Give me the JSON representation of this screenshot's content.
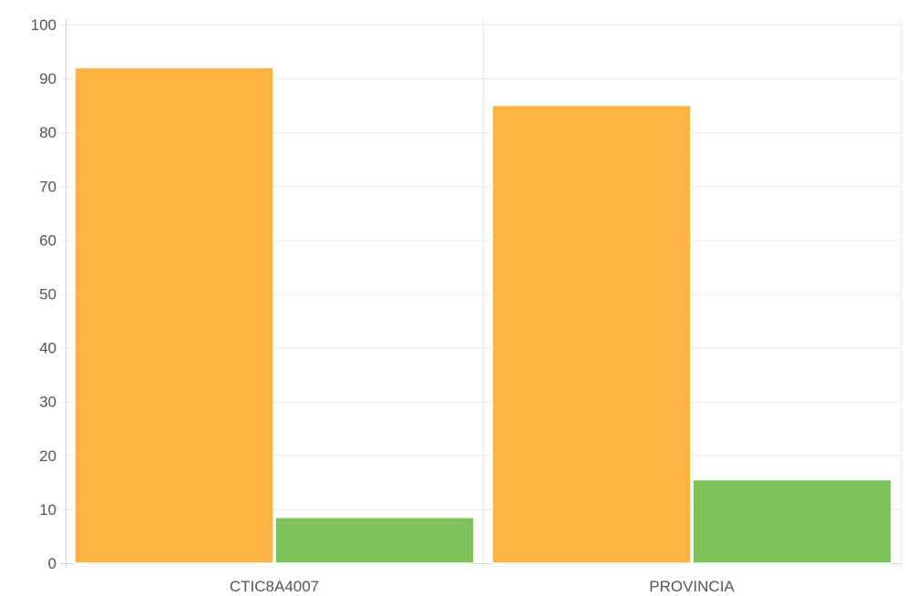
{
  "chart_data": {
    "type": "bar",
    "title": "",
    "xlabel": "",
    "ylabel": "",
    "categories": [
      "CTIC8A4007",
      "PROVINCIA"
    ],
    "series": [
      {
        "color": "#fbb441",
        "values": [
          92,
          85
        ]
      },
      {
        "color": "#7dc35a",
        "values": [
          8.5,
          15.5
        ]
      }
    ],
    "ylim": [
      0,
      100
    ],
    "yticks": [
      0,
      10,
      20,
      30,
      40,
      50,
      60,
      70,
      80,
      90,
      100
    ],
    "grid": true,
    "legend": "none"
  },
  "colors": {
    "grid": "#ebebeb",
    "axis": "#d4d4d4",
    "text": "#555555"
  }
}
